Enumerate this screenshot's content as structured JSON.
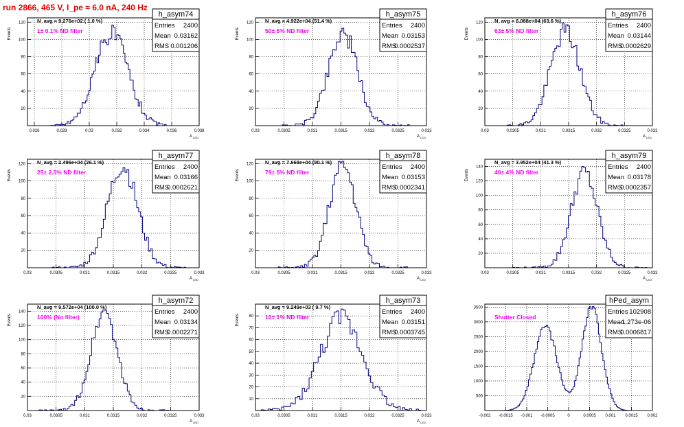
{
  "title": "run 2866,   465 V, I_pe ≈ 6.0 nA, 240 Hz",
  "colors": {
    "hist": "#00007a",
    "annotation": "#ee00ee",
    "title": "#e00000",
    "grid": "#000000"
  },
  "chart_data": [
    {
      "type": "bar",
      "name": "h_asym74",
      "entries": "2400",
      "mean": "0.03162",
      "rms": "0.001206",
      "navg": "N_avg = 9.276e+02 ( 1.0 %)",
      "label": "1± 0.1% ND filter",
      "xlim": [
        0.0255,
        0.038
      ],
      "ylim": [
        0,
        125
      ],
      "xticks": [
        0.026,
        0.028,
        0.03,
        0.032,
        0.034,
        0.036,
        0.038
      ],
      "xticklabels": [
        "0.026",
        "0.028",
        "0.03",
        "0.032",
        "0.034",
        "0.036",
        "0.038"
      ],
      "yticks": [
        20,
        40,
        60,
        80,
        100,
        120
      ],
      "yticklabels": [
        "20",
        "40",
        "60",
        "80",
        "100",
        "120"
      ],
      "ylabel": "Events",
      "xlabel": "A_{LED}",
      "mu": 0.03162,
      "sigma": 0.001206,
      "peak": 108,
      "bins": 70,
      "x0": 0.0272,
      "x1": 0.0356,
      "seed": 74
    },
    {
      "type": "bar",
      "name": "h_asym75",
      "entries": "2400",
      "mean": "0.03153",
      "rms": "0.0002537",
      "navg": "N_avg = 4.922e+04 (51.4 %)",
      "label": "50± 5% ND filter",
      "xlim": [
        0.03,
        0.033
      ],
      "ylim": [
        0,
        125
      ],
      "xticks": [
        0.03,
        0.0305,
        0.031,
        0.0315,
        0.032,
        0.0325,
        0.033
      ],
      "xticklabels": [
        "0.03",
        "0.0305",
        "0.031",
        "0.0315",
        "0.032",
        "0.0325",
        "0.033"
      ],
      "yticks": [
        20,
        40,
        60,
        80,
        100,
        120
      ],
      "yticklabels": [
        "20",
        "40",
        "60",
        "80",
        "100",
        "120"
      ],
      "ylabel": "Events",
      "xlabel": "A_{LED}",
      "mu": 0.03153,
      "sigma": 0.0002537,
      "peak": 108,
      "bins": 70,
      "x0": 0.0304,
      "x1": 0.0327,
      "seed": 75
    },
    {
      "type": "bar",
      "name": "h_asym76",
      "entries": "2400",
      "mean": "0.03144",
      "rms": "0.0002629",
      "navg": "N_avg = 6.088e+04 (63.6 %)",
      "label": "63± 5% ND filter",
      "xlim": [
        0.03,
        0.033
      ],
      "ylim": [
        0,
        125
      ],
      "xticks": [
        0.03,
        0.0305,
        0.031,
        0.0315,
        0.032,
        0.0325,
        0.033
      ],
      "xticklabels": [
        "0.03",
        "0.0305",
        "0.031",
        "0.0315",
        "0.032",
        "0.0325",
        "0.033"
      ],
      "yticks": [
        20,
        40,
        60,
        80,
        100,
        120
      ],
      "yticklabels": [
        "20",
        "40",
        "60",
        "80",
        "100",
        "120"
      ],
      "ylabel": "Events",
      "xlabel": "A_{LED}",
      "mu": 0.03144,
      "sigma": 0.0002629,
      "peak": 110,
      "bins": 70,
      "x0": 0.0303,
      "x1": 0.0326,
      "seed": 76
    },
    {
      "type": "bar",
      "name": "h_asym77",
      "entries": "2400",
      "mean": "0.03166",
      "rms": "0.0002621",
      "navg": "N_avg = 2.496e+04 (26.1 %)",
      "label": "25± 2.5% ND filter",
      "xlim": [
        0.03,
        0.033
      ],
      "ylim": [
        0,
        125
      ],
      "xticks": [
        0.03,
        0.0305,
        0.031,
        0.0315,
        0.032,
        0.0325,
        0.033
      ],
      "xticklabels": [
        "0.03",
        "0.0305",
        "0.031",
        "0.0315",
        "0.032",
        "0.0325",
        "0.033"
      ],
      "yticks": [
        20,
        40,
        60,
        80,
        100,
        120
      ],
      "yticklabels": [
        "20",
        "40",
        "60",
        "80",
        "100",
        "120"
      ],
      "ylabel": "Events",
      "xlabel": "A_{LED}",
      "mu": 0.03166,
      "sigma": 0.0002621,
      "peak": 118,
      "bins": 70,
      "x0": 0.0304,
      "x1": 0.0328,
      "seed": 77
    },
    {
      "type": "bar",
      "name": "h_asym78",
      "entries": "2400",
      "mean": "0.03153",
      "rms": "0.0002341",
      "navg": "N_avg = 7.668e+04 (80.1 %)",
      "label": "79± 5% ND filter",
      "xlim": [
        0.03,
        0.033
      ],
      "ylim": [
        0,
        125
      ],
      "xticks": [
        0.03,
        0.0305,
        0.031,
        0.0315,
        0.032,
        0.0325,
        0.033
      ],
      "xticklabels": [
        "0.03",
        "0.0305",
        "0.031",
        "0.0315",
        "0.032",
        "0.0325",
        "0.033"
      ],
      "yticks": [
        20,
        40,
        60,
        80,
        100,
        120
      ],
      "yticklabels": [
        "20",
        "40",
        "60",
        "80",
        "100",
        "120"
      ],
      "ylabel": "Events",
      "xlabel": "A_{LED}",
      "mu": 0.03153,
      "sigma": 0.0002341,
      "peak": 118,
      "bins": 70,
      "x0": 0.0304,
      "x1": 0.0327,
      "seed": 78
    },
    {
      "type": "bar",
      "name": "h_asym79",
      "entries": "2400",
      "mean": "0.03178",
      "rms": "0.0002357",
      "navg": "N_avg = 3.952e+04 (41.3 %)",
      "label": "40± 4% ND filter",
      "xlim": [
        0.03,
        0.033
      ],
      "ylim": [
        0,
        150
      ],
      "xticks": [
        0.03,
        0.0305,
        0.031,
        0.0315,
        0.032,
        0.0325,
        0.033
      ],
      "xticklabels": [
        "0.03",
        "0.0305",
        "0.031",
        "0.0315",
        "0.032",
        "0.0325",
        "0.033"
      ],
      "yticks": [
        20,
        40,
        60,
        80,
        100,
        120,
        140
      ],
      "yticklabels": [
        "20",
        "40",
        "60",
        "80",
        "100",
        "120",
        "140"
      ],
      "ylabel": "Events",
      "xlabel": "A_{LED}",
      "mu": 0.03178,
      "sigma": 0.0002357,
      "peak": 132,
      "bins": 70,
      "x0": 0.0305,
      "x1": 0.0329,
      "seed": 79
    },
    {
      "type": "bar",
      "name": "h_asym72",
      "entries": "2400",
      "mean": "0.03134",
      "rms": "0.0002271",
      "navg": "N_avg = 9.572e+04 (100.0 %)",
      "label": "100% (No filter)",
      "xlim": [
        0.03,
        0.033
      ],
      "ylim": [
        0,
        150
      ],
      "xticks": [
        0.03,
        0.0305,
        0.031,
        0.0315,
        0.032,
        0.0325,
        0.033
      ],
      "xticklabels": [
        "0.03",
        "0.0305",
        "0.031",
        "0.0315",
        "0.032",
        "0.0325",
        "0.033"
      ],
      "yticks": [
        20,
        40,
        60,
        80,
        100,
        120,
        140
      ],
      "yticklabels": [
        "20",
        "40",
        "60",
        "80",
        "100",
        "120",
        "140"
      ],
      "ylabel": "Events",
      "xlabel": "A_{LED}",
      "mu": 0.03134,
      "sigma": 0.0002271,
      "peak": 140,
      "bins": 70,
      "x0": 0.0302,
      "x1": 0.0325,
      "seed": 72
    },
    {
      "type": "bar",
      "name": "h_asym73",
      "entries": "2400",
      "mean": "0.03151",
      "rms": "0.0003745",
      "navg": "N_avg = 9.249e+03 ( 9.7 %)",
      "label": "10± 1% ND filter",
      "xlim": [
        0.03,
        0.033
      ],
      "ylim": [
        0,
        90
      ],
      "xticks": [
        0.03,
        0.0305,
        0.031,
        0.0315,
        0.032,
        0.0325,
        0.033
      ],
      "xticklabels": [
        "0.03",
        "0.0305",
        "0.031",
        "0.0315",
        "0.032",
        "0.0325",
        "0.033"
      ],
      "yticks": [
        10,
        20,
        30,
        40,
        50,
        60,
        70,
        80
      ],
      "yticklabels": [
        "10",
        "20",
        "30",
        "40",
        "50",
        "60",
        "70",
        "80"
      ],
      "ylabel": "Events",
      "xlabel": "A_{LED}",
      "mu": 0.03151,
      "sigma": 0.0003745,
      "peak": 78,
      "bins": 70,
      "x0": 0.0301,
      "x1": 0.0329,
      "seed": 73
    },
    {
      "type": "bar",
      "name": "hPed_asym",
      "entries": "102908",
      "mean": "-1.273e-06",
      "rms": "0.0006817",
      "navg": "",
      "label": "Shutter Closed",
      "xlim": [
        -0.002,
        0.002
      ],
      "ylim": [
        0,
        3600
      ],
      "xticks": [
        -0.002,
        -0.0015,
        -0.001,
        -0.0005,
        0,
        0.0005,
        0.001,
        0.0015,
        0.002
      ],
      "xticklabels": [
        "-0.002",
        "-0.0015",
        "-0.001",
        "-0.0005",
        "0",
        "0.0005",
        "0.001",
        "0.0015",
        "0.002"
      ],
      "yticks": [
        500,
        1000,
        1500,
        2000,
        2500,
        3000,
        3500
      ],
      "yticklabels": [
        "500",
        "1000",
        "1500",
        "2000",
        "2500",
        "3000",
        "3500"
      ],
      "ylabel": "",
      "xlabel": "",
      "bimodal": [
        {
          "mu": -0.00055,
          "sigma": 0.00027,
          "peak": 2850
        },
        {
          "mu": 0.00055,
          "sigma": 0.00024,
          "peak": 3480
        }
      ],
      "bins": 90,
      "x0": -0.0016,
      "x1": 0.0016,
      "seed": 99
    }
  ]
}
